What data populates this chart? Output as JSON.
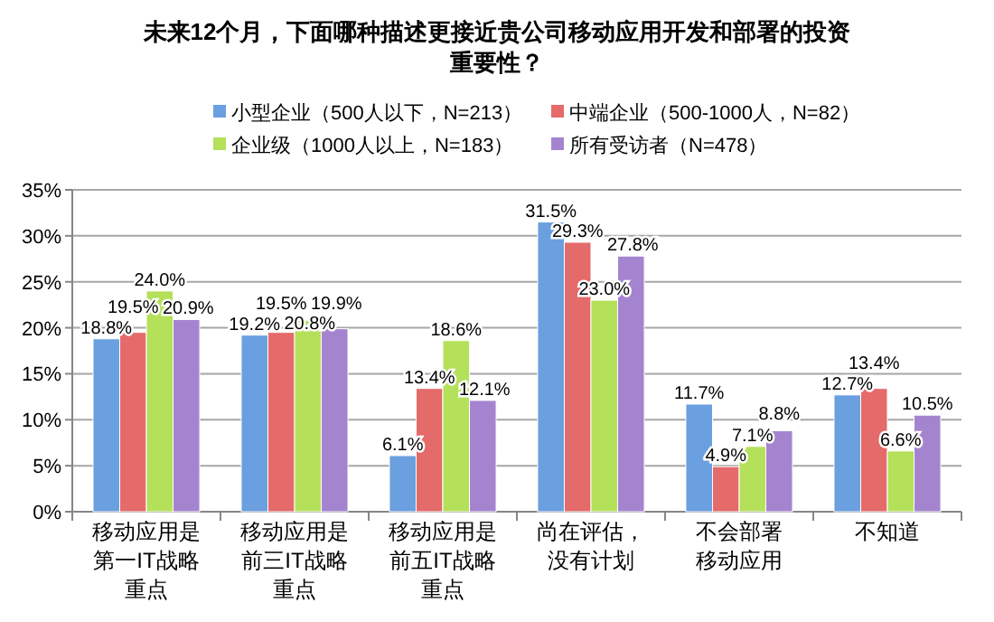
{
  "chart_data": {
    "type": "bar",
    "title": "未来12个月，下面哪种描述更接近贵公司移动应用开发和部署的投资重要性？",
    "categories": [
      "移动应用是第一IT战略重点",
      "移动应用是前三IT战略重点",
      "移动应用是前五IT战略重点",
      "尚在评估，没有计划",
      "不会部署移动应用",
      "不知道"
    ],
    "series": [
      {
        "name": "小型企业（500人以下，N=213）",
        "color": "#6a9fe0",
        "values": [
          18.8,
          19.2,
          6.1,
          31.5,
          11.7,
          12.7
        ],
        "value_labels": [
          "18.8%",
          "19.2%",
          "6.1%",
          "31.5%",
          "11.7%",
          "12.7%"
        ]
      },
      {
        "name": "中端企业（500-1000人，N=82）",
        "color": "#e56a6a",
        "values": [
          19.5,
          19.5,
          13.4,
          29.3,
          4.9,
          13.4
        ],
        "value_labels": [
          "19.5%",
          "19.5%",
          "13.4%",
          "29.3%",
          "4.9%",
          "13.4%"
        ]
      },
      {
        "name": "企业级（1000人以上，N=183）",
        "color": "#b4e05a",
        "values": [
          24.0,
          20.8,
          18.6,
          23.0,
          7.1,
          6.6
        ],
        "value_labels": [
          "24.0%",
          "20.8%",
          "18.6%",
          "23.0%",
          "7.1%",
          "6.6%"
        ]
      },
      {
        "name": "所有受访者（N=478）",
        "color": "#a584cf",
        "values": [
          20.9,
          19.9,
          12.1,
          27.8,
          8.8,
          10.5
        ],
        "value_labels": [
          "20.9%",
          "19.9%",
          "12.1%",
          "27.8%",
          "8.8%",
          "10.5%"
        ]
      }
    ],
    "ylim": [
      0,
      35
    ],
    "yticks": [
      {
        "value": 0,
        "label": "0%"
      },
      {
        "value": 5,
        "label": "5%"
      },
      {
        "value": 10,
        "label": "10%"
      },
      {
        "value": 15,
        "label": "15%"
      },
      {
        "value": 20,
        "label": "20%"
      },
      {
        "value": 25,
        "label": "25%"
      },
      {
        "value": 30,
        "label": "30%"
      },
      {
        "value": 35,
        "label": "35%"
      }
    ],
    "grid": "y",
    "legend": "top"
  }
}
